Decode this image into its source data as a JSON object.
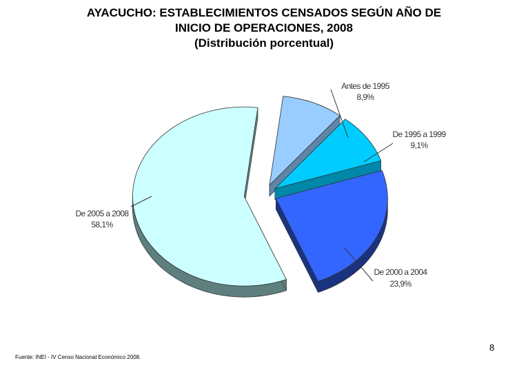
{
  "title_lines": [
    "AYACUCHO: ESTABLECIMIENTOS CENSADOS SEGÚN AÑO DE",
    "INICIO DE OPERACIONES, 2008",
    "(Distribución porcentual)"
  ],
  "chart_data": {
    "type": "pie",
    "title": "AYACUCHO: ESTABLECIMIENTOS CENSADOS SEGÚN AÑO DE INICIO DE OPERACIONES, 2008",
    "subtitle": "(Distribución porcentual)",
    "unit": "%",
    "legend": "none",
    "slices": [
      {
        "label": "Antes de 1995",
        "value": 8.9,
        "display": "8,9%",
        "color": "#99ccff",
        "side": "#5f86a8"
      },
      {
        "label": "De 1995 a 1999",
        "value": 9.1,
        "display": "9,1%",
        "color": "#00ccff",
        "side": "#0088aa"
      },
      {
        "label": "De 2000 a 2004",
        "value": 23.9,
        "display": "23,9%",
        "color": "#3366ff",
        "side": "#1a3380"
      },
      {
        "label": "De 2005 a 2008",
        "value": 58.1,
        "display": "58,1%",
        "color": "#ccffff",
        "side": "#5f7f7f"
      }
    ]
  },
  "footer": {
    "source": "Fuente: INEI - IV Censo Nacional Económico 2008.",
    "page_number": "8"
  }
}
